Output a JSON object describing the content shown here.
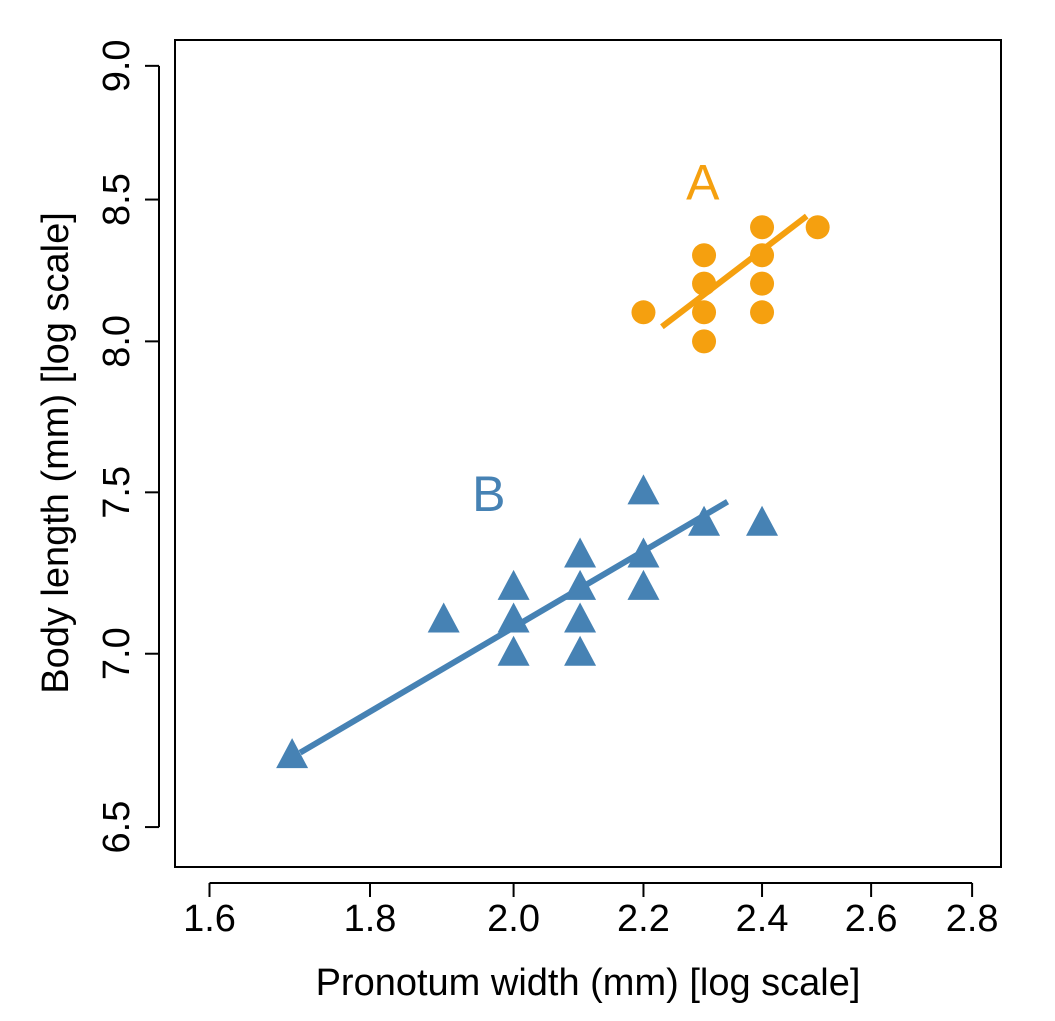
{
  "chart_data": {
    "type": "scatter",
    "title": "",
    "xlabel": "Pronotum width (mm) [log scale]",
    "ylabel": "Body length (mm) [log scale]",
    "x_scale": "log",
    "y_scale": "log",
    "xlim": [
      1.56,
      2.86
    ],
    "ylim": [
      6.39,
      9.1
    ],
    "x_ticks": [
      1.6,
      1.8,
      2.0,
      2.2,
      2.4,
      2.6,
      2.8
    ],
    "x_tick_labels": [
      "1.6",
      "1.8",
      "2.0",
      "2.2",
      "2.4",
      "2.6",
      "2.8"
    ],
    "y_ticks": [
      6.5,
      7.0,
      7.5,
      8.0,
      8.5,
      9.0
    ],
    "y_tick_labels": [
      "6.5",
      "7.0",
      "7.5",
      "8.0",
      "8.5",
      "9.0"
    ],
    "grid": false,
    "series": [
      {
        "name": "A",
        "label": "A",
        "marker": "circle",
        "color": "#F5A00F",
        "x": [
          2.2,
          2.3,
          2.3,
          2.3,
          2.3,
          2.4,
          2.4,
          2.4,
          2.4,
          2.5
        ],
        "y": [
          8.1,
          8.0,
          8.1,
          8.2,
          8.3,
          8.1,
          8.2,
          8.3,
          8.4,
          8.4
        ],
        "fit_line": {
          "x": [
            2.23,
            2.48
          ],
          "y": [
            8.05,
            8.44
          ]
        },
        "label_position": {
          "x": 2.27,
          "y": 8.5
        }
      },
      {
        "name": "B",
        "label": "B",
        "marker": "triangle",
        "color": "#4682B4",
        "x": [
          1.7,
          1.9,
          2.0,
          2.0,
          2.0,
          2.1,
          2.1,
          2.1,
          2.1,
          2.2,
          2.2,
          2.2,
          2.3,
          2.4
        ],
        "y": [
          6.7,
          7.1,
          7.0,
          7.1,
          7.2,
          7.0,
          7.1,
          7.2,
          7.3,
          7.2,
          7.3,
          7.5,
          7.4,
          7.4
        ],
        "fit_line": {
          "x": [
            1.71,
            2.34
          ],
          "y": [
            6.71,
            7.47
          ]
        },
        "label_position": {
          "x": 1.94,
          "y": 7.44
        }
      }
    ]
  }
}
